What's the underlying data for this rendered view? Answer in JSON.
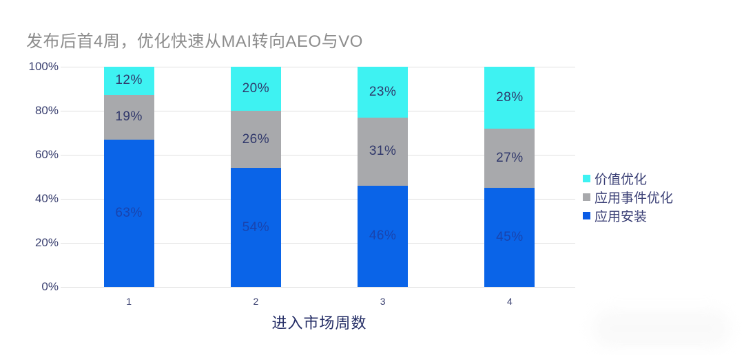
{
  "chart_data": {
    "type": "bar",
    "stacked": true,
    "percent_normalized": true,
    "title": "发布后首4周，优化快速从MAI转向AEO与VO",
    "title_color": "#8c8c8c",
    "xlabel": "进入市场周数",
    "categories": [
      "1",
      "2",
      "3",
      "4"
    ],
    "series": [
      {
        "name": "应用安装",
        "color": "#0a64e8",
        "label_color": "#1944ae",
        "values": [
          63,
          54,
          46,
          45
        ],
        "labels": [
          "63%",
          "54%",
          "46%",
          "45%"
        ]
      },
      {
        "name": "应用事件优化",
        "color": "#a8a9ac",
        "label_color": "#30386b",
        "values": [
          19,
          26,
          31,
          27
        ],
        "labels": [
          "19%",
          "26%",
          "31%",
          "27%"
        ]
      },
      {
        "name": "价值优化",
        "color": "#3ef2f2",
        "label_color": "#30386b",
        "values": [
          12,
          20,
          23,
          28
        ],
        "labels": [
          "12%",
          "20%",
          "23%",
          "28%"
        ]
      }
    ],
    "y_ticks": [
      "0%",
      "20%",
      "40%",
      "60%",
      "80%",
      "100%"
    ],
    "ylim": [
      0,
      100
    ],
    "grid": "horizontal",
    "gridline_color": "#dfdfdf",
    "axis_text_color": "#3a4070",
    "legend_position": "right",
    "legend": [
      {
        "label": "价值优化",
        "color": "#3ef2f2"
      },
      {
        "label": "应用事件优化",
        "color": "#a8a9ac"
      },
      {
        "label": "应用安装",
        "color": "#0a5ce6"
      }
    ]
  }
}
